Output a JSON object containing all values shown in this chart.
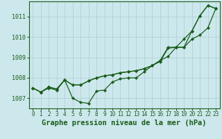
{
  "title": "Graphe pression niveau de la mer (hPa)",
  "bg_color": "#cce8ec",
  "grid_color": "#aaccd4",
  "line_color": "#1a5c1a",
  "marker_color": "#1a5c1a",
  "x": [
    0,
    1,
    2,
    3,
    4,
    5,
    6,
    7,
    8,
    9,
    10,
    11,
    12,
    13,
    14,
    15,
    16,
    17,
    18,
    19,
    20,
    21,
    22,
    23
  ],
  "series1": [
    1007.5,
    1007.3,
    1007.5,
    1007.4,
    1007.9,
    1007.0,
    1006.8,
    1006.75,
    1007.35,
    1007.4,
    1007.8,
    1007.95,
    1008.0,
    1008.0,
    1008.3,
    1008.6,
    1008.8,
    1009.45,
    1009.5,
    1009.9,
    1010.3,
    1011.05,
    1011.55,
    1011.4
  ],
  "series2": [
    1007.5,
    1007.3,
    1007.55,
    1007.45,
    1007.9,
    1007.65,
    1007.65,
    1007.85,
    1008.0,
    1008.1,
    1008.15,
    1008.25,
    1008.3,
    1008.35,
    1008.45,
    1008.6,
    1008.85,
    1009.5,
    1009.5,
    1009.5,
    1010.3,
    1011.05,
    1011.55,
    1011.4
  ],
  "series3": [
    1007.5,
    1007.3,
    1007.55,
    1007.45,
    1007.9,
    1007.65,
    1007.65,
    1007.85,
    1008.0,
    1008.1,
    1008.15,
    1008.25,
    1008.3,
    1008.35,
    1008.45,
    1008.6,
    1008.85,
    1009.05,
    1009.5,
    1009.5,
    1009.9,
    1010.1,
    1010.45,
    1011.4
  ],
  "ylim_min": 1006.5,
  "ylim_max": 1011.75,
  "ytick_min": 1007,
  "ytick_max": 1011,
  "title_fontsize": 7.5,
  "tick_fontsize": 6.0
}
